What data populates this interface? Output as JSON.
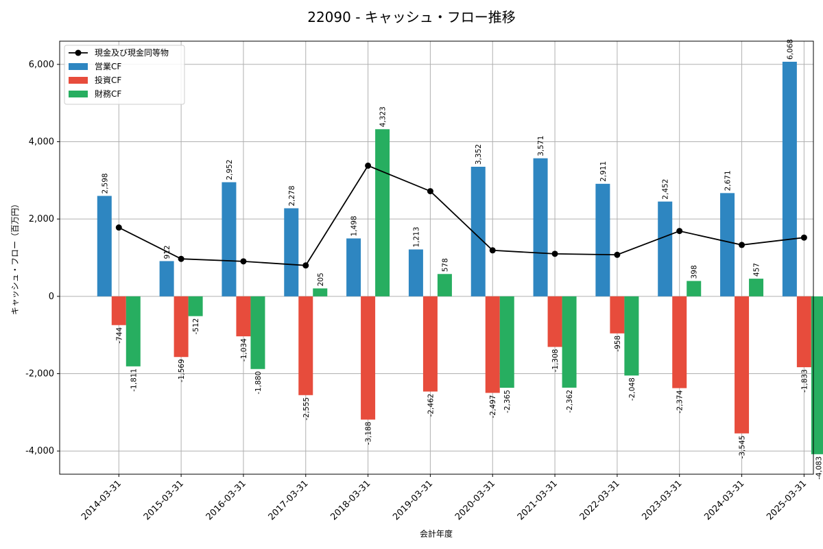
{
  "chart_data": {
    "type": "bar",
    "title": "22090 - キャッシュ・フロー推移",
    "xlabel": "会計年度",
    "ylabel": "キャッシュ・フロー（百万円）",
    "ylim": [
      -4600,
      6600
    ],
    "yticks": [
      -4000,
      -2000,
      0,
      2000,
      4000,
      6000
    ],
    "ytick_labels": [
      "-4,000",
      "-2,000",
      "0",
      "2,000",
      "4,000",
      "6,000"
    ],
    "grid": true,
    "legend_position": "top-left",
    "categories": [
      "2014-03-31",
      "2015-03-31",
      "2016-03-31",
      "2017-03-31",
      "2018-03-31",
      "2019-03-31",
      "2020-03-31",
      "2021-03-31",
      "2022-03-31",
      "2023-03-31",
      "2024-03-31",
      "2025-03-31"
    ],
    "series": [
      {
        "name": "営業CF",
        "kind": "bar",
        "color": "#2e86c1",
        "values": [
          2598,
          912,
          2952,
          2278,
          1498,
          1213,
          3352,
          3571,
          2911,
          2452,
          2671,
          6068
        ],
        "labels": [
          "2,598",
          "912",
          "2,952",
          "2,278",
          "1,498",
          "1,213",
          "3,352",
          "3,571",
          "2,911",
          "2,452",
          "2,671",
          "6,068"
        ]
      },
      {
        "name": "投資CF",
        "kind": "bar",
        "color": "#e74c3c",
        "values": [
          -744,
          -1569,
          -1034,
          -2555,
          -3188,
          -2462,
          -2497,
          -1308,
          -958,
          -2374,
          -3545,
          -1833
        ],
        "labels": [
          "-744",
          "-1,569",
          "-1,034",
          "-2,555",
          "-3,188",
          "-2,462",
          "-2,497",
          "-1,308",
          "-958",
          "-2,374",
          "-3,545",
          "-1,833"
        ]
      },
      {
        "name": "財務CF",
        "kind": "bar",
        "color": "#27ae60",
        "values": [
          -1811,
          -512,
          -1880,
          205,
          4323,
          578,
          -2365,
          -2362,
          -2048,
          398,
          457,
          -4083
        ],
        "labels": [
          "-1,811",
          "-512",
          "-1,880",
          "205",
          "4,323",
          "578",
          "-2,365",
          "-2,362",
          "-2,048",
          "398",
          "457",
          "-4,083"
        ]
      },
      {
        "name": "現金及び現金同等物",
        "kind": "line",
        "color": "#000000",
        "values": [
          1780,
          970,
          905,
          800,
          3380,
          2720,
          1190,
          1100,
          1075,
          1690,
          1330,
          1520
        ]
      }
    ]
  }
}
